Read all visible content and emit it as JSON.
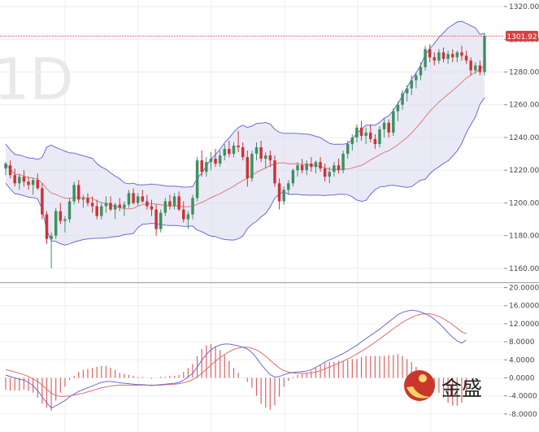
{
  "watermark": "1D",
  "last_price_label": "1301.92",
  "logo": {
    "text": "金盛"
  },
  "colors": {
    "up": "#3f8f62",
    "down": "#cc3333",
    "band_fill": "#d8d8f0",
    "band_line": "#6b6bd6",
    "ma_line": "#e07a7a",
    "macd_line": "#6b6bd6",
    "signal_line": "#e06a6a",
    "hist": "#e06060",
    "price_line": "#d94040"
  },
  "chart_data": [
    {
      "type": "candlestick",
      "title": "",
      "ylim": [
        1152,
        1324
      ],
      "yticks": [
        "1320.00",
        "1300.00",
        "1280.00",
        "1260.00",
        "1240.00",
        "1220.00",
        "1200.00",
        "1180.00",
        "1160.00"
      ],
      "last_price": 1301.92,
      "last_price_label": "1301.92",
      "candles": [
        [
          1221,
          1225,
          1217,
          1224
        ],
        [
          1223,
          1226,
          1215,
          1217
        ],
        [
          1217,
          1221,
          1210,
          1212
        ],
        [
          1212,
          1218,
          1208,
          1216
        ],
        [
          1216,
          1220,
          1210,
          1213
        ],
        [
          1213,
          1216,
          1208,
          1211
        ],
        [
          1211,
          1215,
          1205,
          1214
        ],
        [
          1214,
          1218,
          1208,
          1209
        ],
        [
          1209,
          1212,
          1190,
          1193
        ],
        [
          1193,
          1195,
          1175,
          1178
        ],
        [
          1178,
          1182,
          1160,
          1180
        ],
        [
          1180,
          1197,
          1178,
          1195
        ],
        [
          1195,
          1200,
          1187,
          1189
        ],
        [
          1189,
          1192,
          1182,
          1190
        ],
        [
          1190,
          1203,
          1188,
          1201
        ],
        [
          1201,
          1213,
          1199,
          1211
        ],
        [
          1211,
          1214,
          1200,
          1202
        ],
        [
          1202,
          1205,
          1197,
          1203
        ],
        [
          1203,
          1206,
          1198,
          1200
        ],
        [
          1200,
          1204,
          1194,
          1198
        ],
        [
          1198,
          1202,
          1190,
          1192
        ],
        [
          1192,
          1200,
          1190,
          1198
        ],
        [
          1198,
          1204,
          1194,
          1200
        ],
        [
          1200,
          1204,
          1195,
          1196
        ],
        [
          1196,
          1200,
          1190,
          1199
        ],
        [
          1199,
          1203,
          1195,
          1197
        ],
        [
          1197,
          1201,
          1192,
          1199
        ],
        [
          1199,
          1208,
          1197,
          1206
        ],
        [
          1206,
          1209,
          1199,
          1200
        ],
        [
          1200,
          1206,
          1198,
          1204
        ],
        [
          1204,
          1208,
          1200,
          1201
        ],
        [
          1201,
          1205,
          1196,
          1198
        ],
        [
          1198,
          1202,
          1192,
          1196
        ],
        [
          1196,
          1199,
          1180,
          1184
        ],
        [
          1184,
          1196,
          1182,
          1194
        ],
        [
          1194,
          1203,
          1192,
          1201
        ],
        [
          1201,
          1205,
          1196,
          1198
        ],
        [
          1198,
          1206,
          1196,
          1204
        ],
        [
          1204,
          1207,
          1195,
          1196
        ],
        [
          1196,
          1201,
          1188,
          1190
        ],
        [
          1190,
          1195,
          1184,
          1193
        ],
        [
          1193,
          1205,
          1190,
          1203
        ],
        [
          1203,
          1228,
          1201,
          1226
        ],
        [
          1226,
          1232,
          1216,
          1219
        ],
        [
          1219,
          1228,
          1216,
          1225
        ],
        [
          1225,
          1231,
          1220,
          1227
        ],
        [
          1227,
          1233,
          1222,
          1224
        ],
        [
          1224,
          1232,
          1222,
          1229
        ],
        [
          1229,
          1236,
          1226,
          1233
        ],
        [
          1233,
          1238,
          1228,
          1230
        ],
        [
          1230,
          1237,
          1228,
          1235
        ],
        [
          1235,
          1244,
          1231,
          1234
        ],
        [
          1234,
          1237,
          1226,
          1228
        ],
        [
          1228,
          1232,
          1210,
          1215
        ],
        [
          1215,
          1232,
          1213,
          1230
        ],
        [
          1230,
          1237,
          1226,
          1234
        ],
        [
          1234,
          1238,
          1225,
          1227
        ],
        [
          1227,
          1231,
          1221,
          1229
        ],
        [
          1229,
          1232,
          1222,
          1226
        ],
        [
          1226,
          1229,
          1210,
          1212
        ],
        [
          1212,
          1215,
          1196,
          1201
        ],
        [
          1201,
          1210,
          1199,
          1208
        ],
        [
          1208,
          1214,
          1205,
          1212
        ],
        [
          1212,
          1221,
          1210,
          1220
        ],
        [
          1220,
          1225,
          1216,
          1223
        ],
        [
          1223,
          1227,
          1218,
          1220
        ],
        [
          1220,
          1226,
          1217,
          1224
        ],
        [
          1224,
          1228,
          1219,
          1222
        ],
        [
          1222,
          1226,
          1218,
          1225
        ],
        [
          1225,
          1228,
          1219,
          1221
        ],
        [
          1221,
          1224,
          1213,
          1216
        ],
        [
          1216,
          1222,
          1212,
          1219
        ],
        [
          1219,
          1225,
          1216,
          1223
        ],
        [
          1223,
          1227,
          1218,
          1220
        ],
        [
          1220,
          1232,
          1218,
          1230
        ],
        [
          1230,
          1238,
          1227,
          1236
        ],
        [
          1236,
          1242,
          1232,
          1240
        ],
        [
          1240,
          1248,
          1237,
          1246
        ],
        [
          1246,
          1250,
          1238,
          1241
        ],
        [
          1241,
          1246,
          1236,
          1243
        ],
        [
          1243,
          1248,
          1237,
          1239
        ],
        [
          1239,
          1242,
          1233,
          1236
        ],
        [
          1236,
          1247,
          1234,
          1245
        ],
        [
          1245,
          1252,
          1240,
          1249
        ],
        [
          1249,
          1251,
          1240,
          1243
        ],
        [
          1243,
          1258,
          1241,
          1256
        ],
        [
          1256,
          1262,
          1250,
          1260
        ],
        [
          1260,
          1269,
          1257,
          1267
        ],
        [
          1267,
          1272,
          1262,
          1270
        ],
        [
          1270,
          1278,
          1266,
          1275
        ],
        [
          1275,
          1280,
          1270,
          1278
        ],
        [
          1278,
          1286,
          1275,
          1283
        ],
        [
          1283,
          1296,
          1281,
          1294
        ],
        [
          1294,
          1297,
          1286,
          1289
        ],
        [
          1289,
          1292,
          1284,
          1287
        ],
        [
          1287,
          1294,
          1285,
          1292
        ],
        [
          1292,
          1295,
          1286,
          1288
        ],
        [
          1288,
          1293,
          1285,
          1291
        ],
        [
          1291,
          1294,
          1286,
          1289
        ],
        [
          1289,
          1293,
          1286,
          1292
        ],
        [
          1292,
          1296,
          1287,
          1290
        ],
        [
          1290,
          1293,
          1285,
          1287
        ],
        [
          1287,
          1289,
          1278,
          1281
        ],
        [
          1281,
          1286,
          1279,
          1284
        ],
        [
          1284,
          1287,
          1278,
          1280
        ],
        [
          1280,
          1304,
          1278,
          1302
        ]
      ]
    },
    {
      "type": "line",
      "title": "",
      "ylim": [
        -12,
        21
      ],
      "yticks": [
        "20.0000",
        "16.0000",
        "12.0000",
        "8.0000",
        "4.0000",
        "0.0000",
        "-4.0000",
        "-8.0000"
      ],
      "series": [
        {
          "values": [
            0.6,
            0.3,
            0.0,
            -0.3,
            -0.5,
            -1.0,
            -1.7,
            -2.8,
            -4.2,
            -5.5,
            -6.7,
            -6.2,
            -5.6,
            -5.0,
            -4.2,
            -3.6,
            -3.0,
            -2.6,
            -2.2,
            -1.8,
            -1.4,
            -1.0,
            -0.8,
            -0.8,
            -0.9,
            -1.1,
            -1.2,
            -1.3,
            -1.4,
            -1.5,
            -1.5,
            -1.6,
            -1.7,
            -1.6,
            -1.5,
            -1.4,
            -1.3,
            -1.2,
            -1.0,
            -0.5,
            0.2,
            1.0,
            2.4,
            3.9,
            5.2,
            6.2,
            6.9,
            7.3,
            7.5,
            7.5,
            7.3,
            7.1,
            6.8,
            6.4,
            5.6,
            4.4,
            3.0,
            1.8,
            0.7,
            0.2,
            0.3,
            0.7,
            1.0,
            1.2,
            1.3,
            1.4,
            1.5,
            1.8,
            2.3,
            2.9,
            3.5,
            4.0,
            4.4,
            4.9,
            5.4,
            6.0,
            6.6,
            7.2,
            8.0,
            8.7,
            9.4,
            10.1,
            10.8,
            11.6,
            12.4,
            13.2,
            14.0,
            14.5,
            14.8,
            15.0,
            14.9,
            14.6,
            14.2,
            13.7,
            13.0,
            12.1,
            11.1,
            10.0,
            9.0,
            8.2,
            7.7,
            8.4
          ]
        },
        {
          "values": [
            1.8,
            1.6,
            1.3,
            1.0,
            0.7,
            0.3,
            -0.2,
            -0.8,
            -1.6,
            -2.5,
            -3.4,
            -3.9,
            -4.1,
            -4.1,
            -4.0,
            -3.8,
            -3.6,
            -3.4,
            -3.1,
            -2.8,
            -2.5,
            -2.2,
            -2.0,
            -1.8,
            -1.7,
            -1.6,
            -1.6,
            -1.6,
            -1.6,
            -1.6,
            -1.6,
            -1.6,
            -1.6,
            -1.6,
            -1.6,
            -1.5,
            -1.5,
            -1.4,
            -1.3,
            -1.1,
            -0.8,
            -0.4,
            0.2,
            1.0,
            1.9,
            2.8,
            3.7,
            4.5,
            5.2,
            5.8,
            6.3,
            6.6,
            6.8,
            6.8,
            6.6,
            6.2,
            5.6,
            4.8,
            3.9,
            3.0,
            2.2,
            1.6,
            1.3,
            1.1,
            1.0,
            1.0,
            1.0,
            1.1,
            1.3,
            1.6,
            2.0,
            2.4,
            2.8,
            3.2,
            3.7,
            4.2,
            4.7,
            5.3,
            5.9,
            6.5,
            7.2,
            7.9,
            8.6,
            9.4,
            10.1,
            10.9,
            11.6,
            12.3,
            12.9,
            13.4,
            13.8,
            14.1,
            14.2,
            14.2,
            14.0,
            13.6,
            13.1,
            12.5,
            11.8,
            11.0,
            10.2,
            9.8
          ]
        }
      ]
    }
  ]
}
